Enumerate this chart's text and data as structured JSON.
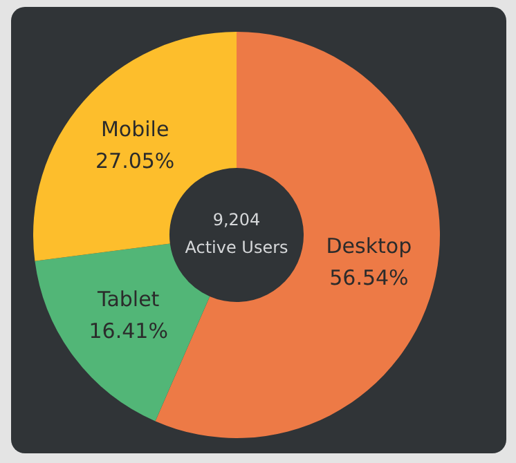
{
  "chart_data": {
    "type": "donut",
    "categories": [
      "Desktop",
      "Tablet",
      "Mobile"
    ],
    "values": [
      56.54,
      16.41,
      27.05
    ],
    "colors": [
      "#ed7a46",
      "#52b677",
      "#fdbe2c"
    ],
    "value_labels": [
      "56.54%",
      "16.41%",
      "27.05%"
    ],
    "legend": false,
    "annotations": [
      "9,204",
      "Active Users"
    ]
  }
}
